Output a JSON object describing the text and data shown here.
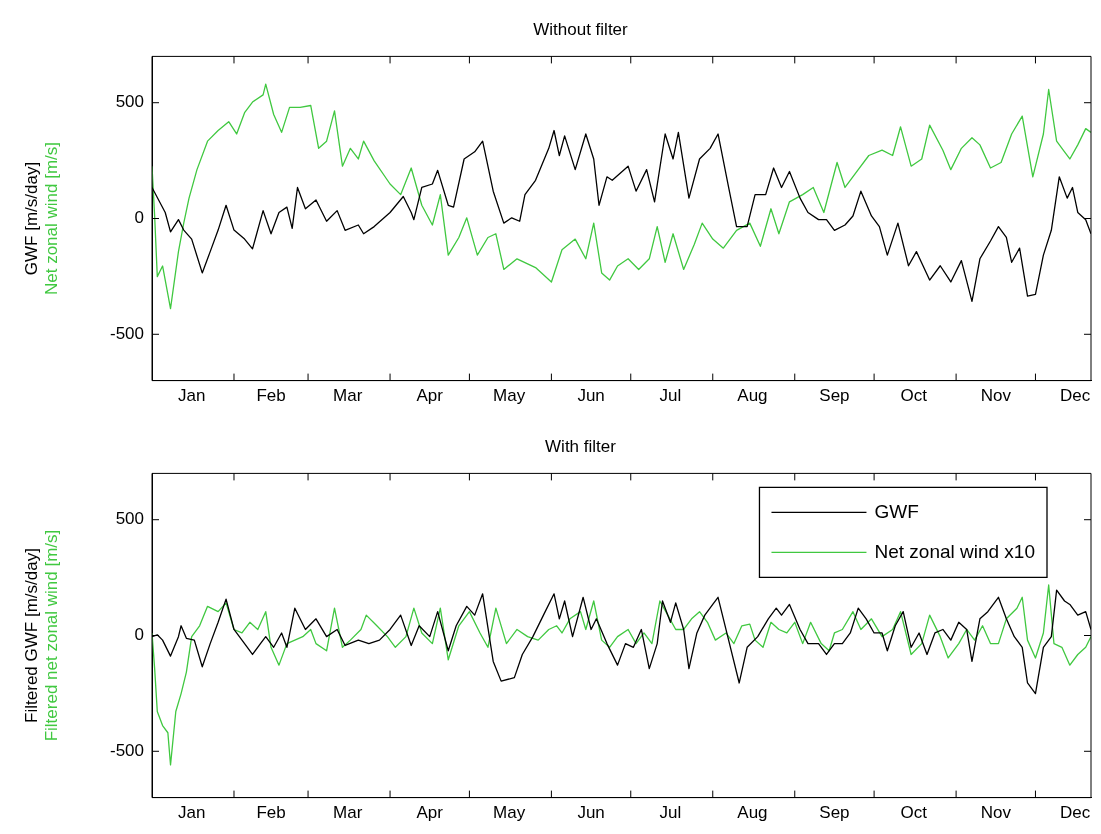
{
  "chart_data": [
    {
      "type": "line",
      "title": "Without filter",
      "ylabel": "GWF [m/s/day]\nNet zonal wind [m/s]",
      "xlim": [
        "--01-01",
        "--12-22"
      ],
      "ylim": [
        -700,
        700
      ],
      "yticks": [
        -500,
        0,
        500
      ],
      "xticks": [
        {
          "value": "--01-16",
          "label": "Jan"
        },
        {
          "value": "--02-01",
          "label": null
        },
        {
          "value": "--02-15",
          "label": "Feb"
        },
        {
          "value": "--03-01",
          "label": null
        },
        {
          "value": "--03-16",
          "label": "Mar"
        },
        {
          "value": "--04-01",
          "label": null
        },
        {
          "value": "--04-16",
          "label": "Apr"
        },
        {
          "value": "--05-01",
          "label": null
        },
        {
          "value": "--05-16",
          "label": "May"
        },
        {
          "value": "--06-01",
          "label": null
        },
        {
          "value": "--06-16",
          "label": "Jun"
        },
        {
          "value": "--07-01",
          "label": null
        },
        {
          "value": "--07-16",
          "label": "Jul"
        },
        {
          "value": "--08-01",
          "label": null
        },
        {
          "value": "--08-16",
          "label": "Aug"
        },
        {
          "value": "--09-01",
          "label": null
        },
        {
          "value": "--09-16",
          "label": "Sep"
        },
        {
          "value": "--10-01",
          "label": null
        },
        {
          "value": "--10-16",
          "label": "Oct"
        },
        {
          "value": "--11-01",
          "label": null
        },
        {
          "value": "--11-16",
          "label": "Nov"
        },
        {
          "value": "--12-01",
          "label": null
        },
        {
          "value": "--12-16",
          "label": "Dec"
        }
      ],
      "series": [
        {
          "color": "#000000",
          "x": [
            "--01-01",
            "--01-06",
            "--01-08",
            "--01-11",
            "--01-13",
            "--01-16",
            "--01-20",
            "--01-23",
            "--01-26",
            "--01-29",
            "--02-01",
            "--02-05",
            "--02-08",
            "--02-12",
            "--02-15",
            "--02-18",
            "--02-21",
            "--02-23",
            "--02-25",
            "--02-28",
            "--03-04",
            "--03-08",
            "--03-12",
            "--03-15",
            "--03-20",
            "--03-22",
            "--03-26",
            "--04-01",
            "--04-06",
            "--04-09",
            "--04-10",
            "--04-13",
            "--04-17",
            "--04-19",
            "--04-23",
            "--04-25",
            "--04-29",
            "--05-03",
            "--05-06",
            "--05-10",
            "--05-14",
            "--05-17",
            "--05-20",
            "--05-22",
            "--05-26",
            "--05-31",
            "--06-02",
            "--06-04",
            "--06-06",
            "--06-10",
            "--06-14",
            "--06-17",
            "--06-19",
            "--06-22",
            "--06-24",
            "--06-30",
            "--07-03",
            "--07-07",
            "--07-10",
            "--07-14",
            "--07-17",
            "--07-19",
            "--07-23",
            "--07-27",
            "--07-31",
            "--08-03",
            "--08-07",
            "--08-10",
            "--08-14",
            "--08-17",
            "--08-21",
            "--08-24",
            "--08-27",
            "--08-30",
            "--09-03",
            "--09-06",
            "--09-10",
            "--09-13",
            "--09-16",
            "--09-20",
            "--09-23",
            "--09-26",
            "--09-30",
            "--10-03",
            "--10-06",
            "--10-10",
            "--10-14",
            "--10-17",
            "--10-22",
            "--10-26",
            "--10-30",
            "--11-03",
            "--11-07",
            "--11-10",
            "--11-14",
            "--11-17",
            "--11-20",
            "--11-22",
            "--11-25",
            "--11-28",
            "--12-01",
            "--12-04",
            "--12-07",
            "--12-10",
            "--12-13",
            "--12-15",
            "--12-17",
            "--12-20",
            "--12-22"
          ],
          "values": [
            134,
            26,
            -58,
            -5,
            -50,
            -89,
            -235,
            -143,
            -50,
            57,
            -50,
            -89,
            -131,
            34,
            -66,
            26,
            49,
            -43,
            134,
            42,
            80,
            -12,
            34,
            -51,
            -28,
            -66,
            -35,
            26,
            95,
            26,
            -5,
            134,
            149,
            208,
            57,
            49,
            257,
            288,
            334,
            118,
            -20,
            3,
            -12,
            103,
            165,
            303,
            380,
            272,
            357,
            211,
            365,
            257,
            57,
            180,
            165,
            226,
            118,
            211,
            72,
            365,
            257,
            372,
            88,
            257,
            303,
            365,
            134,
            -35,
            -35,
            103,
            103,
            218,
            134,
            203,
            88,
            26,
            -5,
            -5,
            -51,
            -28,
            11,
            118,
            11,
            -35,
            -158,
            -20,
            -204,
            -143,
            -266,
            -204,
            -274,
            -182,
            -358,
            -174,
            -97,
            -35,
            -82,
            -189,
            -128,
            -335,
            -328,
            -158,
            -51,
            180,
            88,
            134,
            26,
            -5,
            -66
          ]
        },
        {
          "color": "#40c840",
          "x": [
            "--01-01",
            "--01-02",
            "--01-03",
            "--01-05",
            "--01-08",
            "--01-11",
            "--01-13",
            "--01-15",
            "--01-18",
            "--01-22",
            "--01-26",
            "--01-30",
            "--02-02",
            "--02-05",
            "--02-08",
            "--02-12",
            "--02-13",
            "--02-16",
            "--02-19",
            "--02-22",
            "--02-26",
            "--03-02",
            "--03-05",
            "--03-08",
            "--03-11",
            "--03-14",
            "--03-17",
            "--03-20",
            "--03-22",
            "--03-26",
            "--04-01",
            "--04-05",
            "--04-09",
            "--04-13",
            "--04-17",
            "--04-20",
            "--04-23",
            "--04-27",
            "--04-30",
            "--05-04",
            "--05-08",
            "--05-11",
            "--05-14",
            "--05-19",
            "--05-26",
            "--06-01",
            "--06-05",
            "--06-10",
            "--06-14",
            "--06-17",
            "--06-20",
            "--06-23",
            "--06-26",
            "--06-30",
            "--07-04",
            "--07-08",
            "--07-11",
            "--07-14",
            "--07-17",
            "--07-21",
            "--07-25",
            "--07-28",
            "--08-01",
            "--08-05",
            "--08-10",
            "--08-15",
            "--08-19",
            "--08-23",
            "--08-26",
            "--08-30",
            "--09-04",
            "--09-08",
            "--09-12",
            "--09-17",
            "--09-20",
            "--09-25",
            "--09-29",
            "--10-04",
            "--10-08",
            "--10-11",
            "--10-15",
            "--10-19",
            "--10-22",
            "--10-27",
            "--10-30",
            "--11-03",
            "--11-07",
            "--11-10",
            "--11-14",
            "--11-18",
            "--11-22",
            "--11-26",
            "--11-30",
            "--12-04",
            "--12-06",
            "--12-09",
            "--12-12",
            "--12-14",
            "--12-17",
            "--12-20",
            "--12-22"
          ],
          "values": [
            226,
            11,
            -251,
            -205,
            -389,
            -143,
            -20,
            88,
            211,
            334,
            380,
            418,
            365,
            457,
            503,
            534,
            580,
            449,
            372,
            480,
            480,
            488,
            303,
            334,
            465,
            226,
            303,
            257,
            334,
            249,
            149,
            103,
            218,
            57,
            -28,
            103,
            -158,
            -82,
            3,
            -158,
            -82,
            -66,
            -220,
            -174,
            -212,
            -274,
            -135,
            -89,
            -174,
            -20,
            -235,
            -266,
            -205,
            -174,
            -220,
            -174,
            -35,
            -189,
            -66,
            -220,
            -112,
            -20,
            -89,
            -128,
            -51,
            -20,
            -120,
            42,
            -66,
            72,
            103,
            134,
            26,
            242,
            134,
            211,
            272,
            295,
            272,
            396,
            226,
            257,
            403,
            295,
            211,
            303,
            349,
            318,
            218,
            242,
            365,
            442,
            180,
            365,
            557,
            334,
            288,
            257,
            318,
            388,
            372
          ]
        }
      ]
    },
    {
      "type": "line",
      "title": "With filter",
      "ylabel": "Filtered GWF [m/s/day]\nFiltered net zonal wind [m/s]",
      "legend": "top right",
      "xlim": [
        "--01-01",
        "--12-22"
      ],
      "ylim": [
        -700,
        700
      ],
      "yticks": [
        -500,
        0,
        500
      ],
      "xticks": [
        {
          "value": "--01-16",
          "label": "Jan"
        },
        {
          "value": "--02-01",
          "label": null
        },
        {
          "value": "--02-15",
          "label": "Feb"
        },
        {
          "value": "--03-01",
          "label": null
        },
        {
          "value": "--03-16",
          "label": "Mar"
        },
        {
          "value": "--04-01",
          "label": null
        },
        {
          "value": "--04-16",
          "label": "Apr"
        },
        {
          "value": "--05-01",
          "label": null
        },
        {
          "value": "--05-16",
          "label": "May"
        },
        {
          "value": "--06-01",
          "label": null
        },
        {
          "value": "--06-16",
          "label": "Jun"
        },
        {
          "value": "--07-01",
          "label": null
        },
        {
          "value": "--07-16",
          "label": "Jul"
        },
        {
          "value": "--08-01",
          "label": null
        },
        {
          "value": "--08-16",
          "label": "Aug"
        },
        {
          "value": "--09-01",
          "label": null
        },
        {
          "value": "--09-16",
          "label": "Sep"
        },
        {
          "value": "--10-01",
          "label": null
        },
        {
          "value": "--10-16",
          "label": "Oct"
        },
        {
          "value": "--11-01",
          "label": null
        },
        {
          "value": "--11-16",
          "label": "Nov"
        },
        {
          "value": "--12-01",
          "label": null
        },
        {
          "value": "--12-16",
          "label": "Dec"
        }
      ],
      "series": [
        {
          "name": "GWF",
          "color": "#000000",
          "x": [
            "--01-01",
            "--01-03",
            "--01-05",
            "--01-08",
            "--01-11",
            "--01-12",
            "--01-14",
            "--01-17",
            "--01-20",
            "--01-23",
            "--01-26",
            "--01-29",
            "--02-01",
            "--02-05",
            "--02-08",
            "--02-11",
            "--02-13",
            "--02-16",
            "--02-19",
            "--02-21",
            "--02-24",
            "--02-28",
            "--03-04",
            "--03-08",
            "--03-12",
            "--03-15",
            "--03-20",
            "--03-24",
            "--03-28",
            "--04-01",
            "--04-05",
            "--04-09",
            "--04-12",
            "--04-16",
            "--04-19",
            "--04-23",
            "--04-26",
            "--04-30",
            "--05-03",
            "--05-06",
            "--05-10",
            "--05-13",
            "--05-18",
            "--05-21",
            "--05-25",
            "--05-29",
            "--06-02",
            "--06-04",
            "--06-06",
            "--06-09",
            "--06-13",
            "--06-16",
            "--06-18",
            "--06-22",
            "--06-26",
            "--06-29",
            "--07-02",
            "--07-05",
            "--07-08",
            "--07-11",
            "--07-13",
            "--07-16",
            "--07-18",
            "--07-21",
            "--07-23",
            "--07-26",
            "--07-29",
            "--08-01",
            "--08-03",
            "--08-07",
            "--08-11",
            "--08-14",
            "--08-18",
            "--08-22",
            "--08-25",
            "--08-27",
            "--08-30",
            "--09-03",
            "--09-06",
            "--09-10",
            "--09-13",
            "--09-16",
            "--09-19",
            "--09-22",
            "--09-25",
            "--09-28",
            "--10-01",
            "--10-04",
            "--10-06",
            "--10-09",
            "--10-12",
            "--10-15",
            "--10-18",
            "--10-21",
            "--10-24",
            "--10-27",
            "--10-30",
            "--11-02",
            "--11-05",
            "--11-07",
            "--11-10",
            "--11-13",
            "--11-17",
            "--11-20",
            "--11-23",
            "--11-26",
            "--11-28",
            "--12-01",
            "--12-04",
            "--12-07",
            "--12-09",
            "--12-12",
            "--12-14",
            "--12-17",
            "--12-20",
            "--12-22"
          ],
          "values": [
            -5,
            3,
            -20,
            -89,
            -5,
            42,
            -12,
            -20,
            -135,
            -35,
            57,
            157,
            26,
            -35,
            -82,
            -35,
            -5,
            -51,
            11,
            -51,
            118,
            26,
            72,
            -5,
            26,
            -43,
            -20,
            -35,
            -20,
            26,
            88,
            -43,
            42,
            -5,
            103,
            -66,
            42,
            126,
            88,
            180,
            -112,
            -197,
            -182,
            -82,
            -5,
            88,
            180,
            72,
            149,
            -5,
            165,
            26,
            72,
            -35,
            -128,
            -35,
            -51,
            26,
            -143,
            -35,
            149,
            57,
            141,
            26,
            -143,
            11,
            88,
            134,
            165,
            -20,
            -205,
            -51,
            -5,
            72,
            118,
            88,
            134,
            26,
            -35,
            -35,
            -82,
            -35,
            -35,
            11,
            118,
            72,
            11,
            11,
            -66,
            42,
            103,
            -51,
            11,
            -82,
            11,
            26,
            -20,
            57,
            26,
            -112,
            72,
            103,
            165,
            72,
            -5,
            -51,
            -205,
            -251,
            -51,
            -5,
            196,
            149,
            134,
            88,
            103,
            26
          ]
        },
        {
          "name": "Net zonal wind x10",
          "color": "#40c840",
          "x": [
            "--01-01",
            "--01-02",
            "--01-03",
            "--01-05",
            "--01-07",
            "--01-08",
            "--01-10",
            "--01-12",
            "--01-14",
            "--01-16",
            "--01-19",
            "--01-22",
            "--01-26",
            "--01-29",
            "--02-01",
            "--02-04",
            "--02-07",
            "--02-10",
            "--02-13",
            "--02-15",
            "--02-18",
            "--02-21",
            "--02-24",
            "--02-27",
            "--03-02",
            "--03-04",
            "--03-08",
            "--03-11",
            "--03-14",
            "--03-17",
            "--03-21",
            "--03-23",
            "--03-27",
            "--03-31",
            "--04-03",
            "--04-07",
            "--04-10",
            "--04-13",
            "--04-17",
            "--04-20",
            "--04-23",
            "--04-27",
            "--05-01",
            "--05-05",
            "--05-08",
            "--05-11",
            "--05-15",
            "--05-19",
            "--05-23",
            "--05-27",
            "--05-31",
            "--06-03",
            "--06-05",
            "--06-08",
            "--06-12",
            "--06-14",
            "--06-17",
            "--06-20",
            "--06-23",
            "--06-26",
            "--06-30",
            "--07-03",
            "--07-06",
            "--07-09",
            "--07-12",
            "--07-15",
            "--07-18",
            "--07-21",
            "--07-24",
            "--07-27",
            "--07-30",
            "--08-02",
            "--08-06",
            "--08-09",
            "--08-12",
            "--08-15",
            "--08-17",
            "--08-20",
            "--08-23",
            "--08-26",
            "--08-29",
            "--09-01",
            "--09-04",
            "--09-07",
            "--09-11",
            "--09-14",
            "--09-16",
            "--09-19",
            "--09-23",
            "--09-26",
            "--09-30",
            "--10-04",
            "--10-08",
            "--10-11",
            "--10-15",
            "--10-19",
            "--10-22",
            "--10-26",
            "--10-29",
            "--11-02",
            "--11-05",
            "--11-08",
            "--11-11",
            "--11-14",
            "--11-17",
            "--11-20",
            "--11-24",
            "--11-26",
            "--11-28",
            "--12-01",
            "--12-04",
            "--12-06",
            "--12-08",
            "--12-11",
            "--12-14",
            "--12-17",
            "--12-20",
            "--12-22"
          ],
          "values": [
            11,
            -143,
            -328,
            -389,
            -420,
            -559,
            -328,
            -251,
            -158,
            -5,
            42,
            126,
            103,
            141,
            26,
            11,
            57,
            26,
            103,
            -51,
            -128,
            -35,
            -20,
            -5,
            26,
            -35,
            -66,
            118,
            -51,
            -20,
            26,
            88,
            42,
            -5,
            -51,
            -5,
            118,
            11,
            -35,
            118,
            -105,
            42,
            103,
            11,
            -51,
            118,
            -35,
            26,
            -5,
            -20,
            26,
            42,
            11,
            72,
            103,
            26,
            149,
            -20,
            -51,
            -5,
            26,
            -35,
            11,
            -35,
            149,
            88,
            26,
            26,
            72,
            103,
            57,
            -20,
            11,
            -35,
            42,
            49,
            -20,
            -51,
            57,
            26,
            11,
            57,
            -35,
            57,
            -35,
            -66,
            11,
            26,
            103,
            26,
            72,
            -5,
            26,
            103,
            -82,
            -35,
            88,
            -5,
            -97,
            -35,
            26,
            -20,
            42,
            -35,
            -35,
            72,
            118,
            165,
            -20,
            -97,
            11,
            218,
            -35,
            -51,
            -128,
            -82,
            -51,
            -5
          ]
        }
      ]
    }
  ]
}
